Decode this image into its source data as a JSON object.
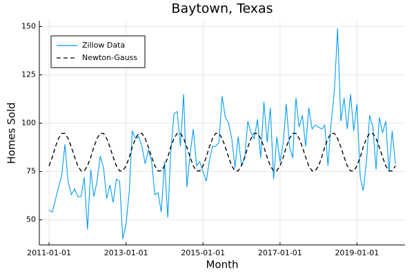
{
  "chart_data": {
    "type": "line",
    "title": "Baytown, Texas",
    "xlabel": "Month",
    "ylabel": "Homes Sold",
    "x": [
      "2011-01-01",
      "2011-02-01",
      "2011-03-01",
      "2011-04-01",
      "2011-05-01",
      "2011-06-01",
      "2011-07-01",
      "2011-08-01",
      "2011-09-01",
      "2011-10-01",
      "2011-11-01",
      "2011-12-01",
      "2012-01-01",
      "2012-02-01",
      "2012-03-01",
      "2012-04-01",
      "2012-05-01",
      "2012-06-01",
      "2012-07-01",
      "2012-08-01",
      "2012-09-01",
      "2012-10-01",
      "2012-11-01",
      "2012-12-01",
      "2013-01-01",
      "2013-02-01",
      "2013-03-01",
      "2013-04-01",
      "2013-05-01",
      "2013-06-01",
      "2013-07-01",
      "2013-08-01",
      "2013-09-01",
      "2013-10-01",
      "2013-11-01",
      "2013-12-01",
      "2014-01-01",
      "2014-02-01",
      "2014-03-01",
      "2014-04-01",
      "2014-05-01",
      "2014-06-01",
      "2014-07-01",
      "2014-08-01",
      "2014-09-01",
      "2014-10-01",
      "2014-11-01",
      "2014-12-01",
      "2015-01-01",
      "2015-02-01",
      "2015-03-01",
      "2015-04-01",
      "2015-05-01",
      "2015-06-01",
      "2015-07-01",
      "2015-08-01",
      "2015-09-01",
      "2015-10-01",
      "2015-11-01",
      "2015-12-01",
      "2016-01-01",
      "2016-02-01",
      "2016-03-01",
      "2016-04-01",
      "2016-05-01",
      "2016-06-01",
      "2016-07-01",
      "2016-08-01",
      "2016-09-01",
      "2016-10-01",
      "2016-11-01",
      "2016-12-01",
      "2017-01-01",
      "2017-02-01",
      "2017-03-01",
      "2017-04-01",
      "2017-05-01",
      "2017-06-01",
      "2017-07-01",
      "2017-08-01",
      "2017-09-01",
      "2017-10-01",
      "2017-11-01",
      "2017-12-01",
      "2018-01-01",
      "2018-02-01",
      "2018-03-01",
      "2018-04-01",
      "2018-05-01",
      "2018-06-01",
      "2018-07-01",
      "2018-08-01",
      "2018-09-01",
      "2018-10-01",
      "2018-11-01",
      "2018-12-01",
      "2019-01-01",
      "2019-02-01",
      "2019-03-01",
      "2019-04-01",
      "2019-05-01",
      "2019-06-01",
      "2019-07-01",
      "2019-08-01",
      "2019-09-01",
      "2019-10-01",
      "2019-11-01",
      "2019-12-01",
      "2020-01-01"
    ],
    "series": [
      {
        "name": "Zillow Data",
        "color": "#009af9",
        "style": "solid",
        "values": [
          55,
          54,
          60,
          67,
          73,
          89,
          70,
          63,
          66,
          62,
          62,
          72,
          45,
          76,
          62,
          70,
          83,
          77,
          61,
          68,
          59,
          71,
          70,
          40,
          48,
          65,
          96,
          92,
          93,
          88,
          79,
          86,
          80,
          63,
          64,
          54,
          80,
          51,
          85,
          105,
          106,
          88,
          115,
          67,
          84,
          97,
          78,
          80,
          75,
          70,
          80,
          88,
          88,
          90,
          114,
          103,
          100,
          92,
          77,
          93,
          78,
          82,
          101,
          95,
          92,
          102,
          82,
          111,
          90,
          108,
          71,
          93,
          80,
          90,
          110,
          88,
          82,
          113,
          98,
          104,
          88,
          108,
          97,
          99,
          98,
          97,
          99,
          78,
          100,
          117,
          149,
          101,
          113,
          97,
          115,
          96,
          110,
          72,
          65,
          80,
          104,
          98,
          76,
          103,
          95,
          101,
          75,
          96,
          79
        ]
      },
      {
        "name": "Newton-Gauss",
        "color": "#000000",
        "style": "dashed",
        "values": [
          77.9,
          82.4,
          87.6,
          92.1,
          94.7,
          94.7,
          92.1,
          87.6,
          82.4,
          77.9,
          75.3,
          75.3,
          77.9,
          82.4,
          87.6,
          92.1,
          94.7,
          94.7,
          92.1,
          87.6,
          82.4,
          77.9,
          75.3,
          75.3,
          77.9,
          82.4,
          87.6,
          92.1,
          94.7,
          94.7,
          92.1,
          87.6,
          82.4,
          77.9,
          75.3,
          75.3,
          77.9,
          82.4,
          87.6,
          92.1,
          94.7,
          94.7,
          92.1,
          87.6,
          82.4,
          77.9,
          75.3,
          75.3,
          77.9,
          82.4,
          87.6,
          92.1,
          94.7,
          94.7,
          92.1,
          87.6,
          82.4,
          77.9,
          75.3,
          75.3,
          77.9,
          82.4,
          87.6,
          92.1,
          94.7,
          94.7,
          92.1,
          87.6,
          82.4,
          77.9,
          75.3,
          75.3,
          77.9,
          82.4,
          87.6,
          92.1,
          94.7,
          94.7,
          92.1,
          87.6,
          82.4,
          77.9,
          75.3,
          75.3,
          77.9,
          82.4,
          87.6,
          92.1,
          94.7,
          94.7,
          92.1,
          87.6,
          82.4,
          77.9,
          75.3,
          75.3,
          77.9,
          82.4,
          87.6,
          92.1,
          94.7,
          94.7,
          92.1,
          87.6,
          82.4,
          77.9,
          75.3,
          75.3,
          77.9
        ]
      }
    ],
    "xlim": [
      "2010-10-01",
      "2020-04-01"
    ],
    "xticks": [
      "2011-01-01",
      "2013-01-01",
      "2015-01-01",
      "2017-01-01",
      "2019-01-01"
    ],
    "ylim": [
      37,
      153
    ],
    "yticks": [
      50,
      75,
      100,
      125,
      150
    ],
    "grid": true,
    "legend": "top-left"
  }
}
